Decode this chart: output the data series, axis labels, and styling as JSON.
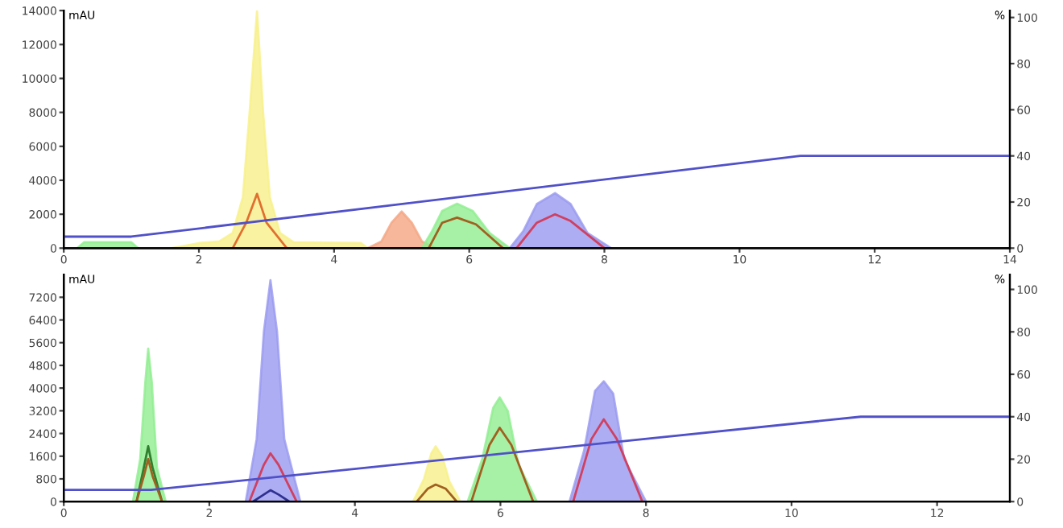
{
  "chart_data": [
    {
      "type": "area",
      "ylabel": "mAU",
      "y2label": "%",
      "xlim": [
        0,
        14
      ],
      "xticks": [
        0,
        2,
        4,
        6,
        8,
        10,
        12,
        14
      ],
      "ylim": [
        0,
        14000
      ],
      "yticks": [
        0,
        2000,
        4000,
        6000,
        8000,
        10000,
        12000,
        14000
      ],
      "y2lim": [
        0,
        103
      ],
      "y2ticks": [
        0,
        20,
        40,
        60,
        80,
        100
      ],
      "grid": false,
      "legend": false,
      "series": [
        {
          "color": "#90ee90",
          "x": [
            0.2,
            0.3,
            1.0,
            1.1
          ],
          "values": [
            0,
            350,
            350,
            0
          ]
        },
        {
          "color": "#f7f08a",
          "x": [
            1.6,
            2.0,
            2.3,
            2.5,
            2.65,
            2.75,
            2.86,
            2.95,
            3.05,
            3.2,
            3.4,
            4.4,
            4.5
          ],
          "values": [
            0,
            300,
            400,
            900,
            3000,
            8000,
            14000,
            8000,
            3000,
            900,
            350,
            300,
            0
          ]
        },
        {
          "color": "#f4a582",
          "x": [
            4.5,
            4.7,
            4.85,
            5.0,
            5.15,
            5.3,
            5.5
          ],
          "values": [
            0,
            400,
            1500,
            2160,
            1500,
            400,
            0
          ]
        },
        {
          "color": "#90ee90",
          "x": [
            5.3,
            5.45,
            5.6,
            5.82,
            6.05,
            6.3,
            6.6
          ],
          "values": [
            0,
            1000,
            2200,
            2620,
            2200,
            900,
            0
          ]
        },
        {
          "color": "#9999f0",
          "x": [
            6.6,
            6.8,
            7.0,
            7.27,
            7.5,
            7.75,
            8.1
          ],
          "values": [
            0,
            1000,
            2600,
            3240,
            2600,
            900,
            0
          ]
        },
        {
          "type": "line",
          "color": "#e07030",
          "x": [
            2.5,
            2.7,
            2.86,
            3.0,
            3.3
          ],
          "values": [
            0,
            1500,
            3200,
            1500,
            0
          ]
        },
        {
          "type": "line",
          "color": "#a06020",
          "x": [
            5.4,
            5.6,
            5.82,
            6.1,
            6.5
          ],
          "values": [
            0,
            1500,
            1800,
            1400,
            0
          ]
        },
        {
          "type": "line",
          "color": "#d04060",
          "x": [
            6.7,
            7.0,
            7.27,
            7.5,
            8.0
          ],
          "values": [
            0,
            1500,
            2000,
            1600,
            0
          ]
        },
        {
          "type": "line",
          "axis": "y2",
          "color": "#5050c8",
          "x": [
            0,
            1.0,
            10.9,
            14
          ],
          "values": [
            5,
            5,
            40,
            40
          ]
        }
      ]
    },
    {
      "type": "area",
      "ylabel": "mAU",
      "y2label": "%",
      "xlim": [
        0,
        13
      ],
      "xticks": [
        0,
        2,
        4,
        6,
        8,
        10,
        12
      ],
      "ylim": [
        0,
        8000
      ],
      "yticks": [
        0,
        800,
        1600,
        2400,
        3200,
        4000,
        4800,
        5600,
        6400,
        7200
      ],
      "y2lim": [
        0,
        107
      ],
      "y2ticks": [
        0,
        20,
        40,
        60,
        80,
        100
      ],
      "grid": false,
      "legend": false,
      "series": [
        {
          "color": "#90ee90",
          "x": [
            0.95,
            1.05,
            1.12,
            1.16,
            1.21,
            1.28,
            1.4
          ],
          "values": [
            0,
            1500,
            4200,
            5390,
            4200,
            1200,
            0
          ]
        },
        {
          "color": "#9999f0",
          "x": [
            2.5,
            2.65,
            2.75,
            2.84,
            2.93,
            3.03,
            3.25
          ],
          "values": [
            0,
            2200,
            6000,
            7800,
            6000,
            2200,
            0
          ]
        },
        {
          "color": "#f7f08a",
          "x": [
            4.8,
            4.95,
            5.05,
            5.11,
            5.2,
            5.3,
            5.45
          ],
          "values": [
            0,
            800,
            1700,
            1950,
            1600,
            700,
            0
          ]
        },
        {
          "color": "#90ee90",
          "x": [
            5.55,
            5.75,
            5.9,
            5.99,
            6.1,
            6.25,
            6.5
          ],
          "values": [
            0,
            1500,
            3300,
            3670,
            3200,
            1300,
            0
          ]
        },
        {
          "color": "#9999f0",
          "x": [
            6.95,
            7.15,
            7.3,
            7.42,
            7.55,
            7.7,
            8.0
          ],
          "values": [
            0,
            1800,
            3900,
            4240,
            3800,
            1500,
            0
          ]
        },
        {
          "type": "line",
          "color": "#2f7f2f",
          "x": [
            1.0,
            1.1,
            1.16,
            1.22,
            1.35
          ],
          "values": [
            0,
            1200,
            1950,
            1200,
            0
          ]
        },
        {
          "type": "line",
          "color": "#a06020",
          "x": [
            1.0,
            1.1,
            1.16,
            1.22,
            1.35
          ],
          "values": [
            0,
            900,
            1500,
            900,
            0
          ]
        },
        {
          "type": "line",
          "color": "#d04060",
          "x": [
            2.55,
            2.75,
            2.84,
            2.95,
            3.2
          ],
          "values": [
            0,
            1300,
            1700,
            1300,
            0
          ]
        },
        {
          "type": "line",
          "color": "#303090",
          "x": [
            2.6,
            2.75,
            2.84,
            2.95,
            3.1
          ],
          "values": [
            0,
            250,
            400,
            250,
            0
          ]
        },
        {
          "type": "line",
          "color": "#a06020",
          "x": [
            4.85,
            5.0,
            5.11,
            5.25,
            5.4
          ],
          "values": [
            0,
            450,
            600,
            450,
            0
          ]
        },
        {
          "type": "line",
          "color": "#a06020",
          "x": [
            5.6,
            5.85,
            5.99,
            6.15,
            6.45
          ],
          "values": [
            0,
            2000,
            2600,
            2000,
            0
          ]
        },
        {
          "type": "line",
          "color": "#d04060",
          "x": [
            7.0,
            7.25,
            7.42,
            7.6,
            7.95
          ],
          "values": [
            0,
            2200,
            2900,
            2200,
            0
          ]
        },
        {
          "type": "line",
          "axis": "y2",
          "color": "#5050c8",
          "x": [
            0,
            1.2,
            10.95,
            13
          ],
          "values": [
            5.5,
            5.5,
            40,
            40
          ]
        }
      ]
    }
  ]
}
